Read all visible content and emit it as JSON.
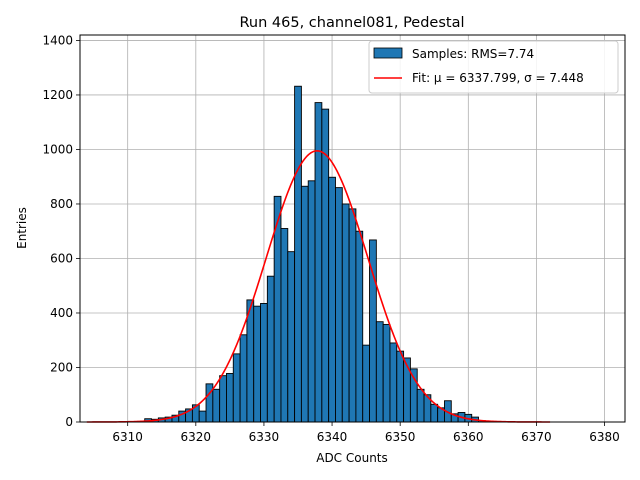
{
  "chart_data": {
    "type": "bar",
    "title": "Run 465, channel081, Pedestal",
    "xlabel": "ADC Counts",
    "ylabel": "Entries",
    "xlim": [
      6303,
      6383
    ],
    "ylim": [
      0,
      1420
    ],
    "xticks": [
      6310,
      6320,
      6330,
      6340,
      6350,
      6360,
      6370,
      6380
    ],
    "yticks": [
      0,
      200,
      400,
      600,
      800,
      1000,
      1200,
      1400
    ],
    "grid": true,
    "legend_position": "top-right",
    "bin_width": 1,
    "histogram": {
      "name": "Samples: RMS=7.74",
      "color": "#1f77b4",
      "bins": [
        {
          "x": 6313,
          "y": 12
        },
        {
          "x": 6314,
          "y": 10
        },
        {
          "x": 6315,
          "y": 15
        },
        {
          "x": 6316,
          "y": 18
        },
        {
          "x": 6317,
          "y": 25
        },
        {
          "x": 6318,
          "y": 40
        },
        {
          "x": 6319,
          "y": 48
        },
        {
          "x": 6320,
          "y": 63
        },
        {
          "x": 6321,
          "y": 40
        },
        {
          "x": 6322,
          "y": 140
        },
        {
          "x": 6323,
          "y": 120
        },
        {
          "x": 6324,
          "y": 170
        },
        {
          "x": 6325,
          "y": 178
        },
        {
          "x": 6326,
          "y": 250
        },
        {
          "x": 6327,
          "y": 320
        },
        {
          "x": 6328,
          "y": 448
        },
        {
          "x": 6329,
          "y": 425
        },
        {
          "x": 6330,
          "y": 435
        },
        {
          "x": 6331,
          "y": 535
        },
        {
          "x": 6332,
          "y": 828
        },
        {
          "x": 6333,
          "y": 710
        },
        {
          "x": 6334,
          "y": 625
        },
        {
          "x": 6335,
          "y": 1232
        },
        {
          "x": 6336,
          "y": 865
        },
        {
          "x": 6337,
          "y": 885
        },
        {
          "x": 6338,
          "y": 1172
        },
        {
          "x": 6339,
          "y": 1148
        },
        {
          "x": 6340,
          "y": 898
        },
        {
          "x": 6341,
          "y": 860
        },
        {
          "x": 6342,
          "y": 800
        },
        {
          "x": 6343,
          "y": 782
        },
        {
          "x": 6344,
          "y": 700
        },
        {
          "x": 6345,
          "y": 282
        },
        {
          "x": 6346,
          "y": 668
        },
        {
          "x": 6347,
          "y": 368
        },
        {
          "x": 6348,
          "y": 358
        },
        {
          "x": 6349,
          "y": 290
        },
        {
          "x": 6350,
          "y": 260
        },
        {
          "x": 6351,
          "y": 235
        },
        {
          "x": 6352,
          "y": 195
        },
        {
          "x": 6353,
          "y": 120
        },
        {
          "x": 6354,
          "y": 100
        },
        {
          "x": 6355,
          "y": 65
        },
        {
          "x": 6356,
          "y": 52
        },
        {
          "x": 6357,
          "y": 78
        },
        {
          "x": 6358,
          "y": 30
        },
        {
          "x": 6359,
          "y": 35
        },
        {
          "x": 6360,
          "y": 28
        },
        {
          "x": 6361,
          "y": 18
        },
        {
          "x": 6362,
          "y": 5
        },
        {
          "x": 6363,
          "y": 3
        },
        {
          "x": 6364,
          "y": 2
        }
      ]
    },
    "fit": {
      "name": "Fit: μ = 6337.799, σ = 7.448",
      "color": "#ff0000",
      "function": "gaussian",
      "mu": 6337.799,
      "sigma": 7.448,
      "amplitude": 995,
      "x_range": [
        6304,
        6372
      ]
    }
  }
}
